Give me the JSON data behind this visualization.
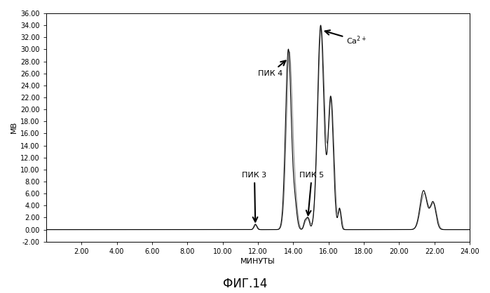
{
  "title": "ФИГ.14",
  "xlabel": "МИНУТЫ",
  "ylabel": "МВ",
  "xlim": [
    0,
    24.0
  ],
  "ylim": [
    -2.0,
    36.0
  ],
  "ytick_vals": [
    -2.0,
    0.0,
    2.0,
    4.0,
    6.0,
    8.0,
    10.0,
    12.0,
    14.0,
    16.0,
    18.0,
    20.0,
    22.0,
    24.0,
    26.0,
    28.0,
    30.0,
    32.0,
    34.0,
    36.0
  ],
  "xtick_vals": [
    2.0,
    4.0,
    6.0,
    8.0,
    10.0,
    12.0,
    14.0,
    16.0,
    18.0,
    20.0,
    22.0,
    24.0
  ],
  "line_color1": "#000000",
  "line_color2": "#888888",
  "bg_color": "#ffffff",
  "plot_bg": "#f5f5f0",
  "ann_fontsize": 8,
  "title_fontsize": 12,
  "axis_fontsize": 8,
  "tick_fontsize": 7
}
